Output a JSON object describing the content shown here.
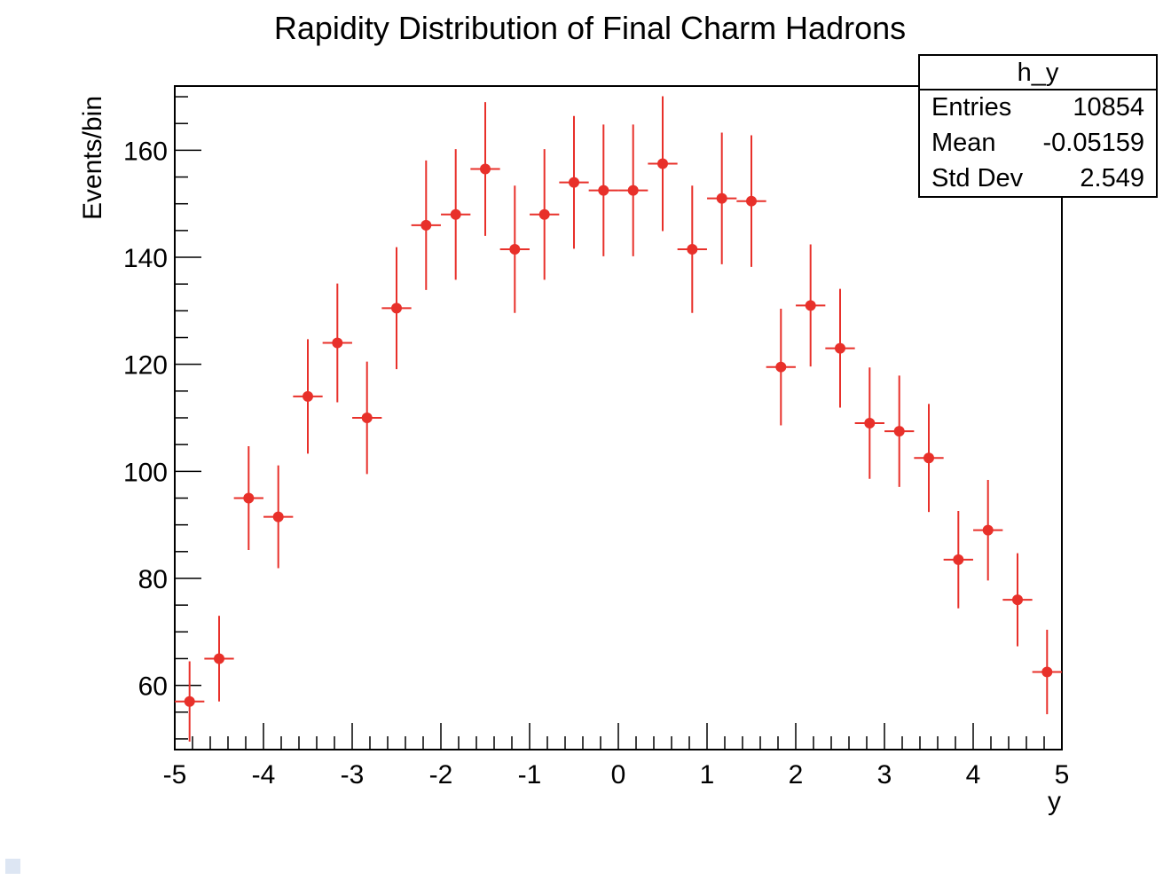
{
  "chart_data": {
    "type": "scatter",
    "title": "Rapidity Distribution of Final Charm Hadrons",
    "xlabel": "y",
    "ylabel": "Events/bin",
    "xlim": [
      -5,
      5
    ],
    "ylim": [
      48,
      172
    ],
    "bin_width": 0.333,
    "x_ticks": [
      -5,
      -4,
      -3,
      -2,
      -1,
      0,
      1,
      2,
      3,
      4,
      5
    ],
    "y_ticks": [
      60,
      80,
      100,
      120,
      140,
      160
    ],
    "series": [
      {
        "color": "#e8302a",
        "x": [
          -4.833,
          -4.5,
          -4.167,
          -3.833,
          -3.5,
          -3.167,
          -2.833,
          -2.5,
          -2.167,
          -1.833,
          -1.5,
          -1.167,
          -0.833,
          -0.5,
          -0.167,
          0.167,
          0.5,
          0.833,
          1.167,
          1.5,
          1.833,
          2.167,
          2.5,
          2.833,
          3.167,
          3.5,
          3.833,
          4.167,
          4.5,
          4.833
        ],
        "values": [
          57,
          65,
          95,
          91.5,
          114,
          124,
          110,
          130.5,
          146,
          148,
          156.5,
          141.5,
          148,
          154,
          152.5,
          152.5,
          157.5,
          141.5,
          151,
          150.5,
          119.5,
          131,
          123,
          109,
          107.5,
          102.5,
          83.5,
          89,
          76,
          62.5
        ],
        "errors": [
          7.5,
          8,
          9.7,
          9.6,
          10.7,
          11.1,
          10.5,
          11.4,
          12.1,
          12.2,
          12.5,
          11.9,
          12.2,
          12.4,
          12.3,
          12.3,
          12.6,
          11.9,
          12.3,
          12.3,
          10.9,
          11.4,
          11.1,
          10.4,
          10.4,
          10.1,
          9.1,
          9.4,
          8.7,
          7.9
        ]
      }
    ],
    "grid": false,
    "legend": "none",
    "stats_box": {
      "position": "top-right",
      "name": "h_y",
      "rows": [
        {
          "label": "Entries",
          "value": "10854"
        },
        {
          "label": "Mean",
          "value": "-0.05159"
        },
        {
          "label": "Std Dev",
          "value": "2.549"
        }
      ]
    }
  }
}
